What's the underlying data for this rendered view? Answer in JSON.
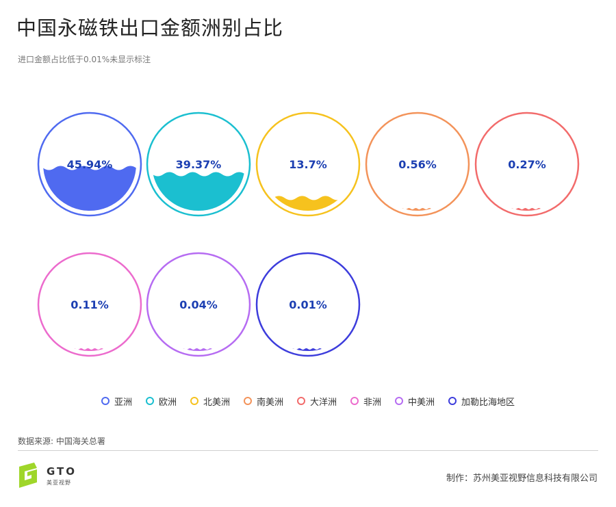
{
  "title": "中国永磁铁出口金额洲别占比",
  "subtitle": "进口金额占比低于0.01%未显示标注",
  "chart_data": {
    "type": "liquid-fill",
    "title": "中国永磁铁出口金额洲别占比",
    "subtitle": "进口金额占比低于0.01%未显示标注",
    "categories": [
      "亚洲",
      "欧洲",
      "北美洲",
      "南美洲",
      "大洋洲",
      "非洲",
      "中美洲",
      "加勒比海地区"
    ],
    "values": [
      45.94,
      39.37,
      13.7,
      0.56,
      0.27,
      0.11,
      0.04,
      0.01
    ],
    "labels": [
      "45.94%",
      "39.37%",
      "13.7%",
      "0.56%",
      "0.27%",
      "0.11%",
      "0.04%",
      "0.01%"
    ],
    "unit": "%",
    "colors": [
      "#4f6af0",
      "#1bbfd0",
      "#f6c21e",
      "#f3935a",
      "#f26b6b",
      "#ec6bcd",
      "#b66cf2",
      "#3d3ddc"
    ],
    "label_color": "#1c3fb2",
    "legend_position": "bottom"
  },
  "source": "数据来源: 中国海关总署",
  "logo": {
    "text": "GTO",
    "sub": "美亚视野"
  },
  "credit": "制作：苏州美亚视野信息科技有限公司"
}
